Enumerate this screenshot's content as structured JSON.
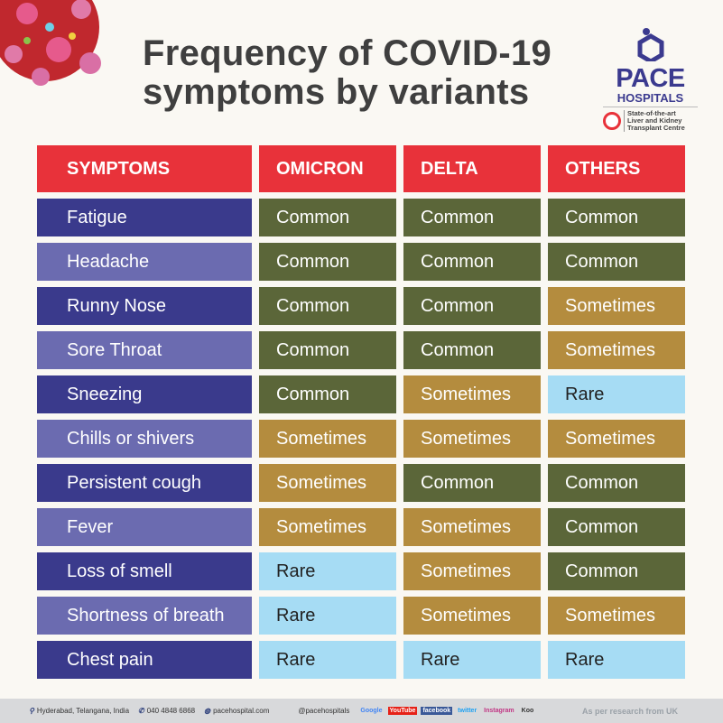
{
  "title": {
    "line1": "Frequency of COVID-19",
    "line2": "symptoms by variants"
  },
  "logo": {
    "name": "PACE",
    "sub": "HOSPITALS",
    "tagline": [
      "State-of-the-art",
      "Liver and Kidney",
      "Transplant Centre"
    ],
    "tm": "™"
  },
  "colors": {
    "header": "#e8323a",
    "symptom_dark": "#3a3a8c",
    "symptom_light": "#6b6bb0",
    "Common": "#5b6639",
    "Sometimes": "#b48c3e",
    "Rare": "#a6dcf4"
  },
  "table": {
    "headers": [
      "SYMPTOMS",
      "OMICRON",
      "DELTA",
      "OTHERS"
    ],
    "rows": [
      [
        "Fatigue",
        "Common",
        "Common",
        "Common"
      ],
      [
        "Headache",
        "Common",
        "Common",
        "Common"
      ],
      [
        "Runny Nose",
        "Common",
        "Common",
        "Sometimes"
      ],
      [
        "Sore Throat",
        "Common",
        "Common",
        "Sometimes"
      ],
      [
        "Sneezing",
        "Common",
        "Sometimes",
        "Rare"
      ],
      [
        "Chills or shivers",
        "Sometimes",
        "Sometimes",
        "Sometimes"
      ],
      [
        "Persistent cough",
        "Sometimes",
        "Common",
        "Common"
      ],
      [
        "Fever",
        "Sometimes",
        "Sometimes",
        "Common"
      ],
      [
        "Loss of smell",
        "Rare",
        "Sometimes",
        "Common"
      ],
      [
        "Shortness of breath",
        "Rare",
        "Sometimes",
        "Sometimes"
      ],
      [
        "Chest pain",
        "Rare",
        "Rare",
        "Rare"
      ]
    ]
  },
  "footer": {
    "location": "Hyderabad, Telangana, India",
    "phone": "040 4848 6868",
    "website": "pacehospital.com",
    "handle": "@pacehospitals",
    "socials": [
      "Google",
      "YouTube",
      "facebook",
      "twitter",
      "Instagram",
      "Koo"
    ],
    "note": "As per research from UK"
  }
}
